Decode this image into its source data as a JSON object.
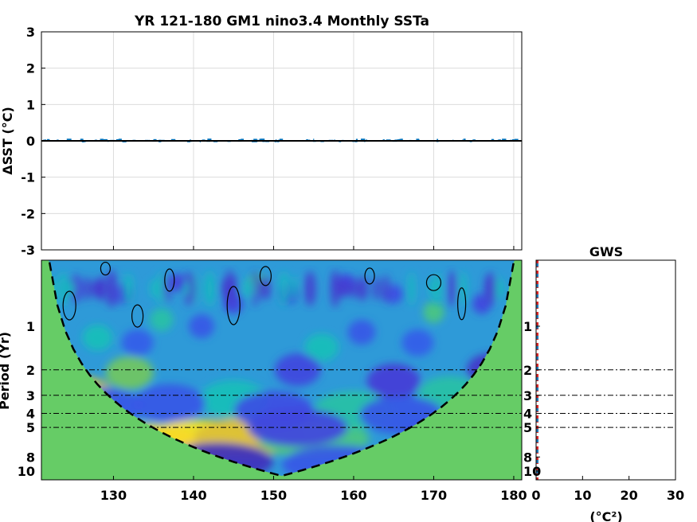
{
  "chart_data": [
    {
      "type": "line",
      "title": "YR 121-180 GM1 nino3.4 Monthly SSTa",
      "ylabel": "ΔSST (°C)",
      "xlim": [
        121,
        181
      ],
      "ylim": [
        -3,
        3
      ],
      "xticks": [
        130,
        140,
        150,
        160,
        170,
        180
      ],
      "yticks": [
        3,
        2,
        1,
        0,
        -1,
        -2,
        -3
      ],
      "grid": true,
      "series": [
        {
          "x": [
            121,
            181
          ],
          "values": [
            0,
            0
          ],
          "color": "#000000"
        }
      ],
      "noise_color": "#0072bd"
    },
    {
      "type": "heatmap",
      "ylabel": "Period (Yr)",
      "xlim": [
        121,
        181
      ],
      "ylim": [
        0.35,
        11.5
      ],
      "xticks": [
        130,
        140,
        150,
        160,
        170,
        180
      ],
      "yticks": [
        1,
        2,
        3,
        4,
        5,
        8,
        10
      ],
      "y_scale": "log",
      "reference_periods": [
        2,
        3,
        4,
        5
      ],
      "cone_of_influence": "dashed",
      "blobs": [
        {
          "x": 141,
          "p": 6.0,
          "v": 1.0
        },
        {
          "x": 134,
          "p": 6.4,
          "v": 0.95
        },
        {
          "x": 147,
          "p": 5.8,
          "v": 0.8
        },
        {
          "x": 126,
          "p": 3.0,
          "v": 0.75
        },
        {
          "x": 132,
          "p": 2.1,
          "v": 0.55
        },
        {
          "x": 155,
          "p": 6.0,
          "v": 0.45
        },
        {
          "x": 166,
          "p": 10.0,
          "v": 0.6
        },
        {
          "x": 160,
          "p": 3.8,
          "v": 0.35
        },
        {
          "x": 145,
          "p": 3.2,
          "v": 0.3
        },
        {
          "x": 172,
          "p": 3.0,
          "v": 0.35
        },
        {
          "x": 128,
          "p": 1.2,
          "v": 0.3
        },
        {
          "x": 156,
          "p": 1.4,
          "v": 0.3
        },
        {
          "x": 170,
          "p": 0.8,
          "v": 0.45
        },
        {
          "x": 148,
          "p": 0.5,
          "v": 0.4
        },
        {
          "x": 136,
          "p": 0.9,
          "v": 0.35
        },
        {
          "x": 143,
          "p": 8.6,
          "v": -0.85
        },
        {
          "x": 177,
          "p": 2.0,
          "v": -0.75
        },
        {
          "x": 165,
          "p": 2.4,
          "v": -0.65
        },
        {
          "x": 153,
          "p": 2.0,
          "v": -0.55
        },
        {
          "x": 173,
          "p": 5.6,
          "v": -0.55
        },
        {
          "x": 129,
          "p": 3.6,
          "v": -0.45
        },
        {
          "x": 137,
          "p": 3.4,
          "v": -0.45
        },
        {
          "x": 150,
          "p": 3.8,
          "v": -0.5
        },
        {
          "x": 166,
          "p": 4.1,
          "v": -0.45
        },
        {
          "x": 153,
          "p": 5.0,
          "v": -0.55
        },
        {
          "x": 158,
          "p": 9.0,
          "v": -0.45
        },
        {
          "x": 125,
          "p": 0.55,
          "v": -0.5
        },
        {
          "x": 131,
          "p": 0.6,
          "v": -0.55
        },
        {
          "x": 138,
          "p": 0.5,
          "v": -0.6
        },
        {
          "x": 145,
          "p": 0.7,
          "v": -0.55
        },
        {
          "x": 152,
          "p": 0.6,
          "v": -0.5
        },
        {
          "x": 159,
          "p": 0.5,
          "v": -0.55
        },
        {
          "x": 165,
          "p": 0.6,
          "v": -0.5
        },
        {
          "x": 176,
          "p": 0.7,
          "v": -0.55
        },
        {
          "x": 141,
          "p": 1.0,
          "v": -0.45
        },
        {
          "x": 161,
          "p": 1.1,
          "v": -0.45
        },
        {
          "x": 168,
          "p": 1.3,
          "v": -0.4
        },
        {
          "x": 133,
          "p": 1.3,
          "v": -0.4
        }
      ],
      "colors": {
        "cone_fill": "#66cc66",
        "contour": "#000000"
      }
    },
    {
      "type": "line",
      "title": "GWS",
      "xlabel": "(°C²)",
      "xlim": [
        0,
        30
      ],
      "xticks": [
        0,
        10,
        20,
        30
      ],
      "yticks": [
        1,
        2,
        3,
        4,
        5,
        8,
        10
      ],
      "reference_periods": [
        2,
        3,
        4,
        5
      ],
      "spectrum_colors": [
        "#d62728",
        "#1f77b4"
      ]
    }
  ]
}
